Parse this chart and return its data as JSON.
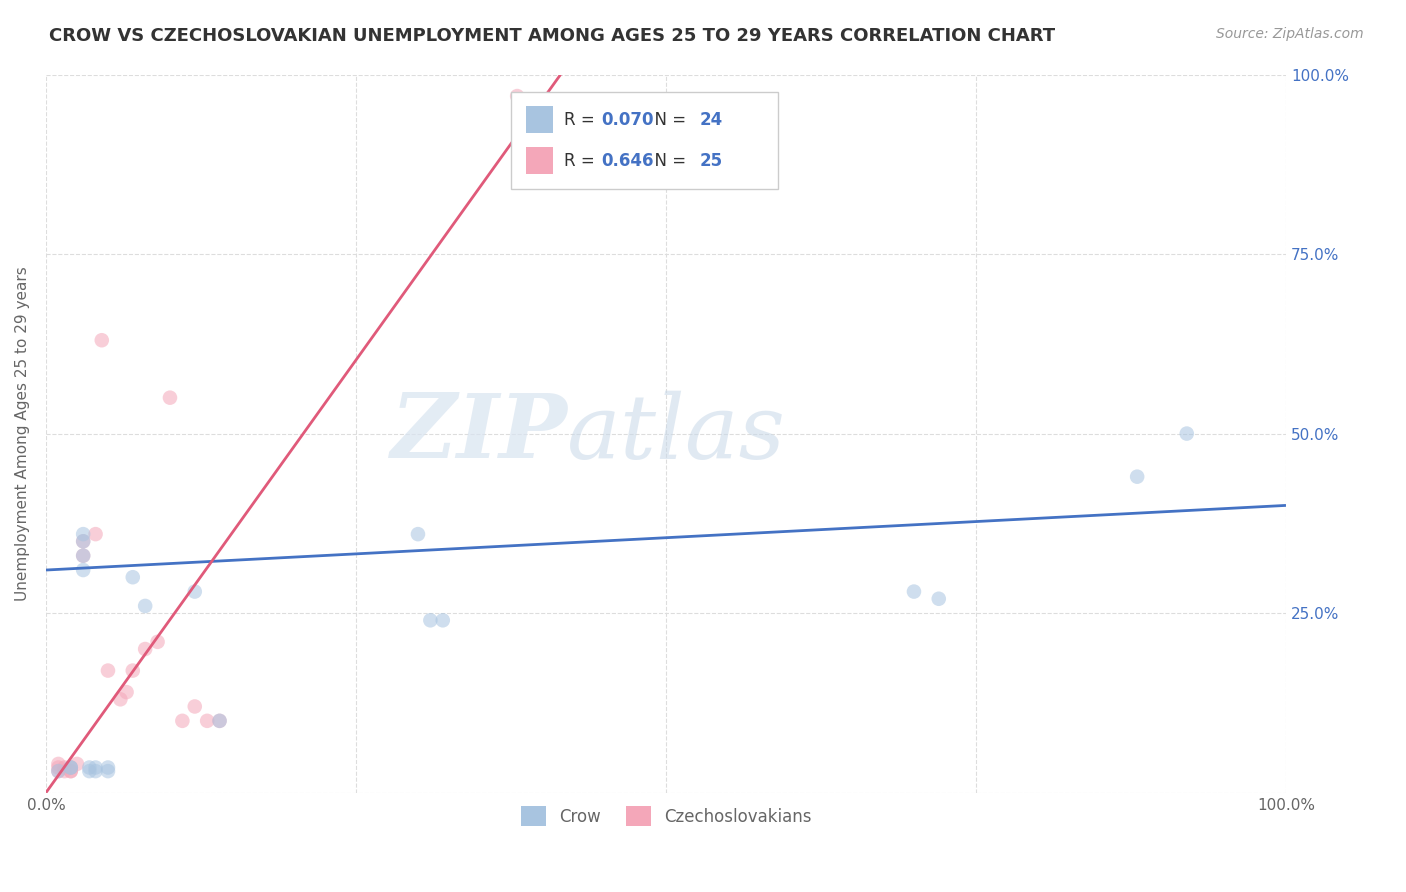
{
  "title": "CROW VS CZECHOSLOVAKIAN UNEMPLOYMENT AMONG AGES 25 TO 29 YEARS CORRELATION CHART",
  "source": "Source: ZipAtlas.com",
  "ylabel": "Unemployment Among Ages 25 to 29 years",
  "xlim": [
    0,
    1.0
  ],
  "ylim": [
    0,
    1.0
  ],
  "xtick_positions": [
    0.0,
    0.25,
    0.5,
    0.75,
    1.0
  ],
  "xtick_labels": [
    "0.0%",
    "",
    "",
    "",
    "100.0%"
  ],
  "ytick_positions": [
    0.0,
    0.25,
    0.5,
    0.75,
    1.0
  ],
  "ytick_labels": [
    "",
    "25.0%",
    "50.0%",
    "75.0%",
    "100.0%"
  ],
  "crow_color": "#a8c4e0",
  "crow_line_color": "#4472c4",
  "czech_color": "#f4a7b9",
  "czech_line_color": "#e05a7a",
  "crow_R": "0.070",
  "crow_N": "24",
  "czech_R": "0.646",
  "czech_N": "25",
  "legend_label_crow": "Crow",
  "legend_label_czech": "Czechoslovakians",
  "watermark_zip": "ZIP",
  "watermark_atlas": "atlas",
  "crow_scatter_x": [
    0.01,
    0.02,
    0.02,
    0.03,
    0.03,
    0.03,
    0.03,
    0.035,
    0.035,
    0.04,
    0.04,
    0.05,
    0.05,
    0.07,
    0.08,
    0.12,
    0.14,
    0.3,
    0.31,
    0.32,
    0.7,
    0.72,
    0.88,
    0.92
  ],
  "crow_scatter_y": [
    0.03,
    0.035,
    0.035,
    0.35,
    0.36,
    0.33,
    0.31,
    0.03,
    0.035,
    0.03,
    0.035,
    0.03,
    0.035,
    0.3,
    0.26,
    0.28,
    0.1,
    0.36,
    0.24,
    0.24,
    0.28,
    0.27,
    0.44,
    0.5
  ],
  "czech_scatter_x": [
    0.01,
    0.01,
    0.015,
    0.015,
    0.02,
    0.02,
    0.02,
    0.025,
    0.03,
    0.03,
    0.04,
    0.045,
    0.05,
    0.06,
    0.065,
    0.07,
    0.08,
    0.09,
    0.1,
    0.11,
    0.12,
    0.13,
    0.14,
    0.38,
    0.01
  ],
  "czech_scatter_y": [
    0.03,
    0.035,
    0.03,
    0.035,
    0.03,
    0.03,
    0.035,
    0.04,
    0.33,
    0.35,
    0.36,
    0.63,
    0.17,
    0.13,
    0.14,
    0.17,
    0.2,
    0.21,
    0.55,
    0.1,
    0.12,
    0.1,
    0.1,
    0.97,
    0.04
  ],
  "crow_trend_x": [
    0.0,
    1.0
  ],
  "crow_trend_y": [
    0.31,
    0.4
  ],
  "czech_trend_x": [
    0.0,
    0.415
  ],
  "czech_trend_y": [
    0.0,
    1.0
  ],
  "background_color": "#ffffff",
  "grid_color": "#dddddd",
  "title_color": "#333333",
  "marker_size": 110,
  "marker_alpha": 0.55,
  "title_fontsize": 13,
  "axis_fontsize": 11,
  "tick_fontsize": 11,
  "source_fontsize": 10,
  "blue_text_color": "#4472c4",
  "dark_text_color": "#333333",
  "gray_text_color": "#666666"
}
